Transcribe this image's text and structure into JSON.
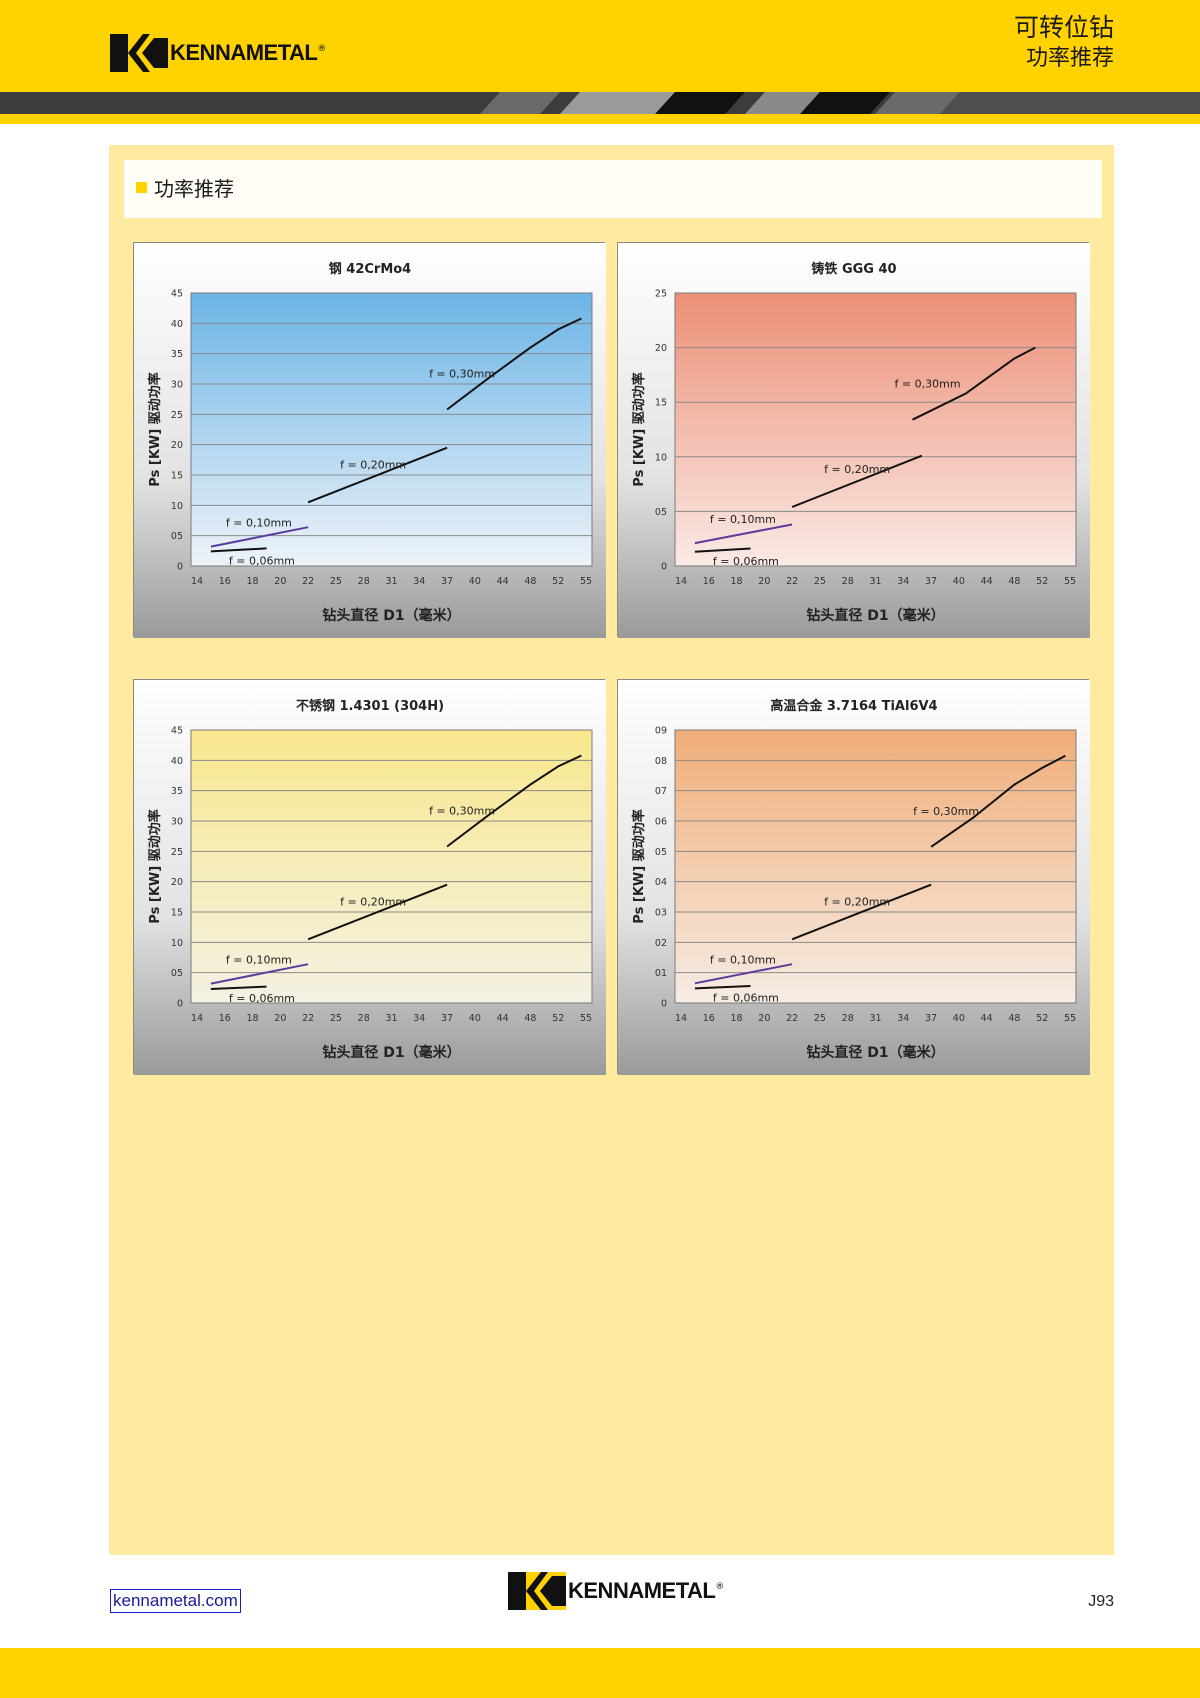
{
  "brand": {
    "name": "KENNAMETAL",
    "mark": "®"
  },
  "header": {
    "title": "可转位钻",
    "subtitle": "功率推荐"
  },
  "section": {
    "title": "功率推荐"
  },
  "colors": {
    "brand_yellow": "#ffd200",
    "panel": "#ffeaa0",
    "line_black": "#111111",
    "line_purple": "#5b3c9e"
  },
  "footer": {
    "url": "kennametal.com",
    "page": "J93"
  },
  "chart_data": [
    {
      "type": "line",
      "title": "钢 42CrMo4",
      "xlabel": "钻头直径 D1（毫米）",
      "ylabel": "Ps [KW] 驱动功率",
      "x_ticks": [
        "14",
        "16",
        "18",
        "20",
        "22",
        "25",
        "28",
        "31",
        "34",
        "37",
        "40",
        "44",
        "48",
        "52",
        "55"
      ],
      "y_ticks": [
        "0",
        "05",
        "10",
        "15",
        "20",
        "25",
        "30",
        "35",
        "40",
        "45"
      ],
      "ylim": [
        0,
        45
      ],
      "background": [
        "#6bb4e6",
        "#eef3f8"
      ],
      "series": [
        {
          "name": "f = 0,06mm",
          "color": "#111111",
          "points": [
            [
              15,
              2.4
            ],
            [
              19,
              2.9
            ]
          ]
        },
        {
          "name": "f = 0,10mm",
          "color": "#5b3c9e",
          "points": [
            [
              15,
              3.2
            ],
            [
              22,
              6.4
            ]
          ]
        },
        {
          "name": "f = 0,20mm",
          "color": "#111111",
          "points": [
            [
              22,
              10.5
            ],
            [
              37,
              19.5
            ]
          ]
        },
        {
          "name": "f = 0,30mm",
          "color": "#111111",
          "points": [
            [
              37,
              25.8
            ],
            [
              42,
              31
            ],
            [
              48,
              36
            ],
            [
              52,
              39
            ],
            [
              54.5,
              40.8
            ]
          ]
        }
      ]
    },
    {
      "type": "line",
      "title": "铸铁 GGG 40",
      "xlabel": "钻头直径 D1（毫米）",
      "ylabel": "Ps [KW] 驱动功率",
      "x_ticks": [
        "14",
        "16",
        "18",
        "20",
        "22",
        "25",
        "28",
        "31",
        "34",
        "37",
        "40",
        "44",
        "48",
        "52",
        "55"
      ],
      "y_ticks": [
        "0",
        "05",
        "10",
        "15",
        "20",
        "25"
      ],
      "ylim": [
        0,
        25
      ],
      "background": [
        "#ec8f76",
        "#faeae5"
      ],
      "series": [
        {
          "name": "f = 0,06mm",
          "color": "#111111",
          "points": [
            [
              15,
              1.3
            ],
            [
              19,
              1.6
            ]
          ]
        },
        {
          "name": "f = 0,10mm",
          "color": "#5b3c9e",
          "points": [
            [
              15,
              2.1
            ],
            [
              22,
              3.8
            ]
          ]
        },
        {
          "name": "f = 0,20mm",
          "color": "#111111",
          "points": [
            [
              22,
              5.4
            ],
            [
              36,
              10.1
            ]
          ]
        },
        {
          "name": "f = 0,30mm",
          "color": "#111111",
          "points": [
            [
              35,
              13.4
            ],
            [
              41,
              15.8
            ],
            [
              48,
              19
            ],
            [
              51,
              20
            ]
          ]
        }
      ]
    },
    {
      "type": "line",
      "title": "不锈钢 1.4301 (304H)",
      "xlabel": "钻头直径 D1（毫米）",
      "ylabel": "Ps [KW] 驱动功率",
      "x_ticks": [
        "14",
        "16",
        "18",
        "20",
        "22",
        "25",
        "28",
        "31",
        "34",
        "37",
        "40",
        "44",
        "48",
        "52",
        "55"
      ],
      "y_ticks": [
        "0",
        "05",
        "10",
        "15",
        "20",
        "25",
        "30",
        "35",
        "40",
        "45"
      ],
      "ylim": [
        0,
        45
      ],
      "background": [
        "#f9e88e",
        "#f4f1e3"
      ],
      "series": [
        {
          "name": "f = 0,06mm",
          "color": "#111111",
          "points": [
            [
              15,
              2.3
            ],
            [
              19,
              2.7
            ]
          ]
        },
        {
          "name": "f = 0,10mm",
          "color": "#5b3c9e",
          "points": [
            [
              15,
              3.2
            ],
            [
              22,
              6.4
            ]
          ]
        },
        {
          "name": "f = 0,20mm",
          "color": "#111111",
          "points": [
            [
              22,
              10.5
            ],
            [
              37,
              19.5
            ]
          ]
        },
        {
          "name": "f = 0,30mm",
          "color": "#111111",
          "points": [
            [
              37,
              25.8
            ],
            [
              42,
              31
            ],
            [
              48,
              36
            ],
            [
              52,
              39
            ],
            [
              54.5,
              40.8
            ]
          ]
        }
      ]
    },
    {
      "type": "line",
      "title": "高温合金 3.7164 TiAl6V4",
      "xlabel": "钻头直径 D1（毫米）",
      "ylabel": "Ps [KW] 驱动功率",
      "x_ticks": [
        "14",
        "16",
        "18",
        "20",
        "22",
        "25",
        "28",
        "31",
        "34",
        "37",
        "40",
        "44",
        "48",
        "52",
        "55"
      ],
      "y_ticks": [
        "0",
        "01",
        "02",
        "03",
        "04",
        "05",
        "06",
        "07",
        "08",
        "09"
      ],
      "ylim": [
        0,
        9
      ],
      "background": [
        "#f0ad78",
        "#f6ece4"
      ],
      "series": [
        {
          "name": "f = 0,06mm",
          "color": "#111111",
          "points": [
            [
              15,
              0.48
            ],
            [
              19,
              0.56
            ]
          ]
        },
        {
          "name": "f = 0,10mm",
          "color": "#5b3c9e",
          "points": [
            [
              15,
              0.65
            ],
            [
              22,
              1.28
            ]
          ]
        },
        {
          "name": "f = 0,20mm",
          "color": "#111111",
          "points": [
            [
              22,
              2.1
            ],
            [
              37,
              3.9
            ]
          ]
        },
        {
          "name": "f = 0,30mm",
          "color": "#111111",
          "points": [
            [
              37,
              5.15
            ],
            [
              42,
              6.1
            ],
            [
              48,
              7.2
            ],
            [
              52,
              7.75
            ],
            [
              54.5,
              8.15
            ]
          ]
        }
      ]
    }
  ]
}
